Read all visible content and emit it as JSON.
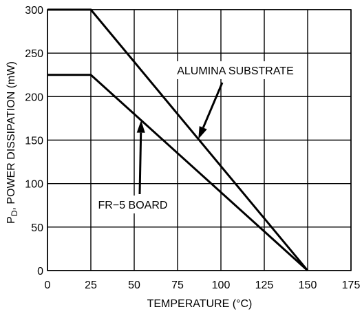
{
  "chart_data": {
    "type": "line",
    "xlabel": "TEMPERATURE (°C)",
    "ylabel_main": "P",
    "ylabel_sub": "D",
    "ylabel_rest": ", POWER DISSIPATION (mW)",
    "xlim": [
      0,
      175
    ],
    "ylim": [
      0,
      300
    ],
    "xticks": [
      0,
      25,
      50,
      75,
      100,
      125,
      150,
      175
    ],
    "yticks": [
      0,
      50,
      100,
      150,
      200,
      250,
      300
    ],
    "grid": true,
    "series": [
      {
        "name": "ALUMINA SUBSTRATE",
        "x": [
          0,
          25,
          150
        ],
        "y": [
          300,
          300,
          0
        ]
      },
      {
        "name": "FR-5 BOARD",
        "x": [
          0,
          25,
          150
        ],
        "y": [
          225,
          225,
          0
        ]
      }
    ],
    "annotations": [
      {
        "text": "ALUMINA SUBSTRATE",
        "series": 0
      },
      {
        "text": "FR−5 BOARD",
        "series": 1
      }
    ]
  }
}
